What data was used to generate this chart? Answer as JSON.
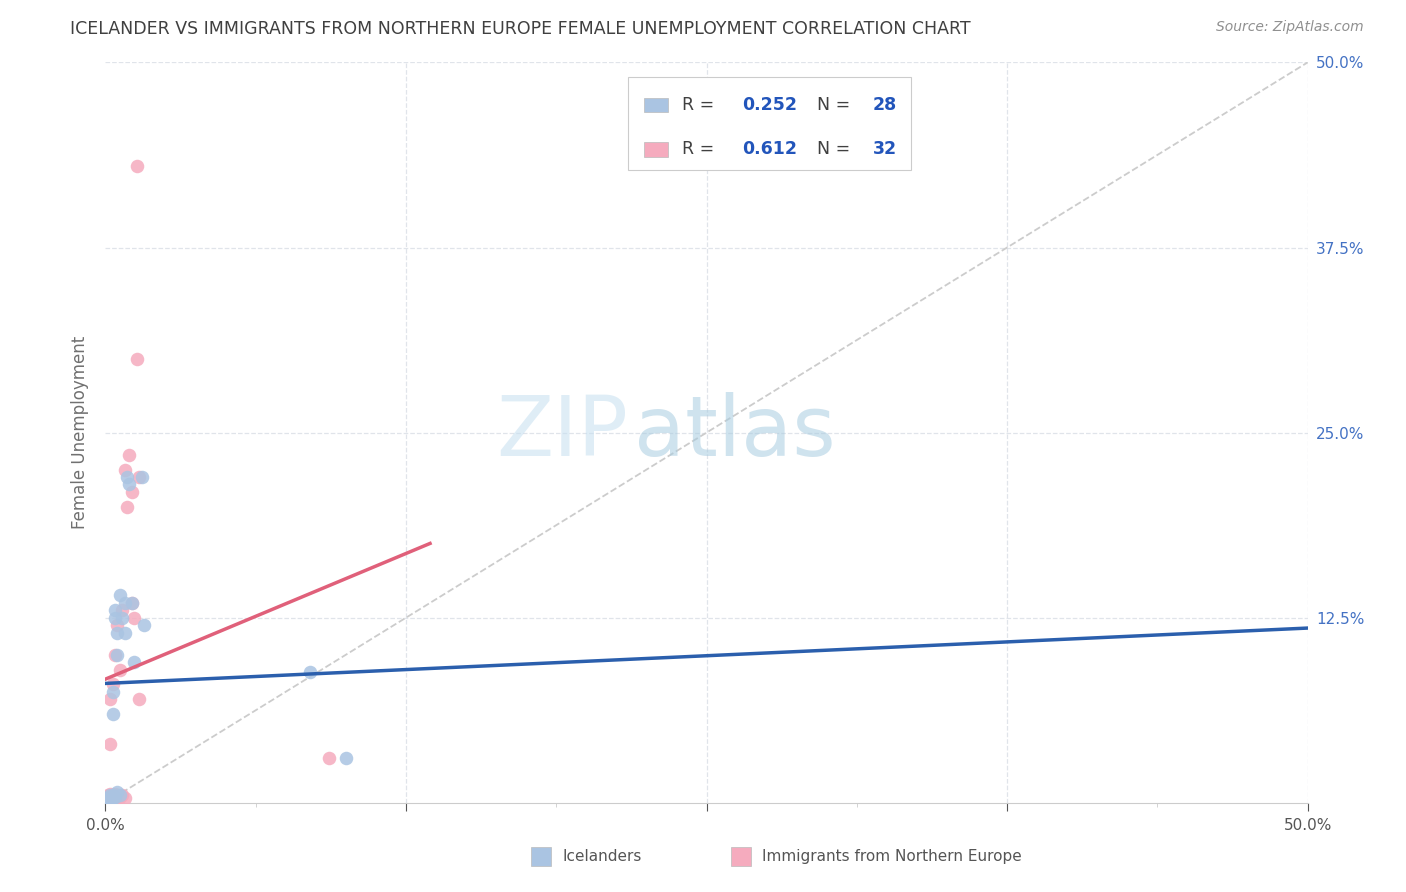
{
  "title": "ICELANDER VS IMMIGRANTS FROM NORTHERN EUROPE FEMALE UNEMPLOYMENT CORRELATION CHART",
  "source": "Source: ZipAtlas.com",
  "ylabel": "Female Unemployment",
  "xlim": [
    0.0,
    0.5
  ],
  "ylim": [
    0.0,
    0.5
  ],
  "blue_color": "#aac4e2",
  "pink_color": "#f5abbe",
  "blue_line_color": "#2b5fad",
  "pink_line_color": "#e0607a",
  "diagonal_color": "#cccccc",
  "background_color": "#ffffff",
  "grid_color": "#e0e4ea",
  "title_color": "#404040",
  "source_color": "#909090",
  "axis_label_color": "#707070",
  "right_tick_color": "#4472c4",
  "bottom_tick_color": "#555555",
  "legend_r1_val": "0.252",
  "legend_n1_val": "28",
  "legend_r2_val": "0.612",
  "legend_n2_val": "32",
  "val_color": "#2255bb",
  "icelanders_x": [
    0.001,
    0.001,
    0.002,
    0.002,
    0.002,
    0.003,
    0.003,
    0.003,
    0.003,
    0.004,
    0.004,
    0.004,
    0.005,
    0.005,
    0.005,
    0.006,
    0.006,
    0.007,
    0.008,
    0.008,
    0.009,
    0.01,
    0.011,
    0.012,
    0.015,
    0.016,
    0.085,
    0.1
  ],
  "icelanders_y": [
    0.002,
    0.003,
    0.004,
    0.005,
    0.002,
    0.06,
    0.075,
    0.003,
    0.005,
    0.125,
    0.13,
    0.004,
    0.1,
    0.115,
    0.007,
    0.005,
    0.14,
    0.125,
    0.115,
    0.135,
    0.22,
    0.215,
    0.135,
    0.095,
    0.22,
    0.12,
    0.088,
    0.03
  ],
  "immigrants_x": [
    0.001,
    0.001,
    0.001,
    0.001,
    0.002,
    0.002,
    0.002,
    0.002,
    0.002,
    0.003,
    0.003,
    0.003,
    0.004,
    0.004,
    0.005,
    0.005,
    0.006,
    0.006,
    0.007,
    0.007,
    0.008,
    0.008,
    0.009,
    0.01,
    0.011,
    0.011,
    0.012,
    0.013,
    0.013,
    0.014,
    0.014,
    0.093
  ],
  "immigrants_y": [
    0.003,
    0.004,
    0.002,
    0.005,
    0.003,
    0.006,
    0.04,
    0.002,
    0.07,
    0.005,
    0.003,
    0.08,
    0.006,
    0.1,
    0.004,
    0.12,
    0.004,
    0.09,
    0.005,
    0.13,
    0.003,
    0.225,
    0.2,
    0.235,
    0.135,
    0.21,
    0.125,
    0.3,
    0.43,
    0.22,
    0.07,
    0.03
  ],
  "legend_labels": [
    "Icelanders",
    "Immigrants from Northern Europe"
  ]
}
